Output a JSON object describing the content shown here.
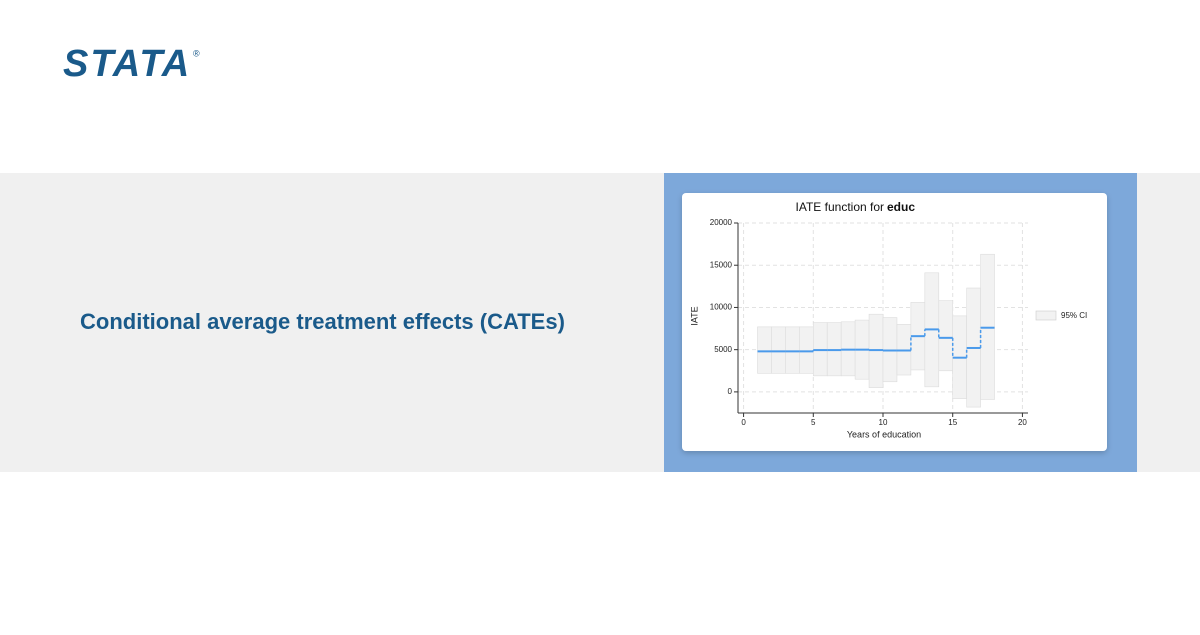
{
  "logo": "STATA",
  "logo_mark": "®",
  "headline": "Conditional average treatment effects (CATEs)",
  "chart_data": {
    "type": "step",
    "title": "IATE function for",
    "title_var": "educ",
    "x_label": "Years of education",
    "y_label": "IATE",
    "x": [
      1,
      2,
      3,
      4,
      5,
      6,
      7,
      8,
      9,
      10,
      11,
      12,
      13,
      14,
      15,
      16,
      17
    ],
    "series": [
      {
        "name": "IATE",
        "color": "#4a9aeb",
        "values": [
          4800,
          4800,
          4800,
          4800,
          4950,
          4950,
          5000,
          5000,
          4950,
          4900,
          4900,
          6600,
          7400,
          6400,
          4050,
          5200,
          7600
        ]
      }
    ],
    "ci": {
      "name": "95% CI",
      "color": "#f2f2f2",
      "upper": [
        7700,
        7700,
        7700,
        7700,
        8200,
        8200,
        8300,
        8500,
        9200,
        8800,
        8000,
        10600,
        14100,
        10800,
        9000,
        12300,
        16300
      ],
      "lower": [
        2200,
        2200,
        2200,
        2200,
        1900,
        1900,
        1900,
        1500,
        500,
        1200,
        2000,
        2600,
        600,
        2500,
        -800,
        -1800,
        -900
      ]
    },
    "xlim": [
      -0.4,
      20.4
    ],
    "xticks": [
      0,
      5,
      10,
      15,
      20
    ],
    "ylim": [
      -2500,
      20000
    ],
    "yticks": [
      0,
      5000,
      10000,
      15000,
      20000
    ],
    "grid": true,
    "legend": "right"
  }
}
